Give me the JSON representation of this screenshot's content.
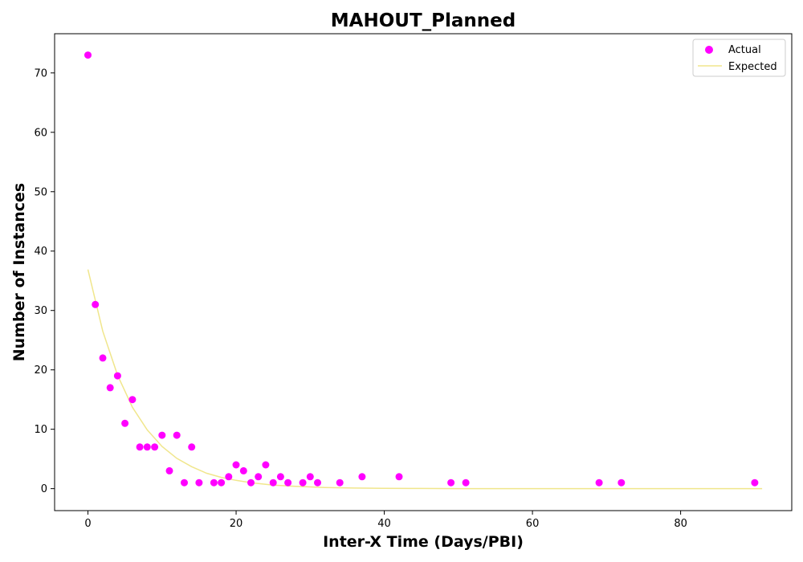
{
  "chart_data": {
    "type": "scatter",
    "title": "MAHOUT_Planned",
    "xlabel": "Inter-X Time (Days/PBI)",
    "ylabel": "Number of Instances",
    "xlim": [
      -4.5,
      95
    ],
    "ylim": [
      -3.7,
      76.6
    ],
    "xticks": [
      0,
      20,
      40,
      60,
      80
    ],
    "yticks": [
      0,
      10,
      20,
      30,
      40,
      50,
      60,
      70
    ],
    "grid": false,
    "legend_position": "top-right",
    "series": [
      {
        "name": "Actual",
        "kind": "scatter",
        "color": "#ff00ff",
        "x": [
          0,
          1,
          2,
          3,
          4,
          5,
          6,
          7,
          8,
          9,
          10,
          11,
          12,
          13,
          14,
          15,
          17,
          18,
          19,
          20,
          21,
          22,
          23,
          24,
          25,
          26,
          27,
          29,
          30,
          31,
          34,
          37,
          42,
          49,
          51,
          69,
          72,
          90
        ],
        "y": [
          73,
          31,
          22,
          17,
          19,
          11,
          15,
          7,
          7,
          7,
          9,
          3,
          9,
          1,
          7,
          1,
          1,
          1,
          2,
          4,
          3,
          1,
          2,
          4,
          1,
          2,
          1,
          1,
          2,
          1,
          1,
          2,
          2,
          1,
          1,
          1,
          1,
          1
        ]
      },
      {
        "name": "Expected",
        "kind": "line",
        "color": "#f0e68c",
        "x": [
          0,
          2,
          4,
          6,
          8,
          10,
          12,
          14,
          16,
          18,
          20,
          22,
          25,
          28,
          32,
          36,
          40,
          45,
          50,
          55,
          60,
          70,
          80,
          91
        ],
        "y": [
          36.9,
          26.5,
          19.1,
          13.7,
          9.9,
          7.1,
          5.1,
          3.7,
          2.6,
          1.9,
          1.4,
          1.0,
          0.6,
          0.4,
          0.2,
          0.1,
          0.06,
          0.03,
          0.01,
          0.0,
          0.0,
          0.0,
          0.0,
          0.0
        ]
      }
    ]
  }
}
